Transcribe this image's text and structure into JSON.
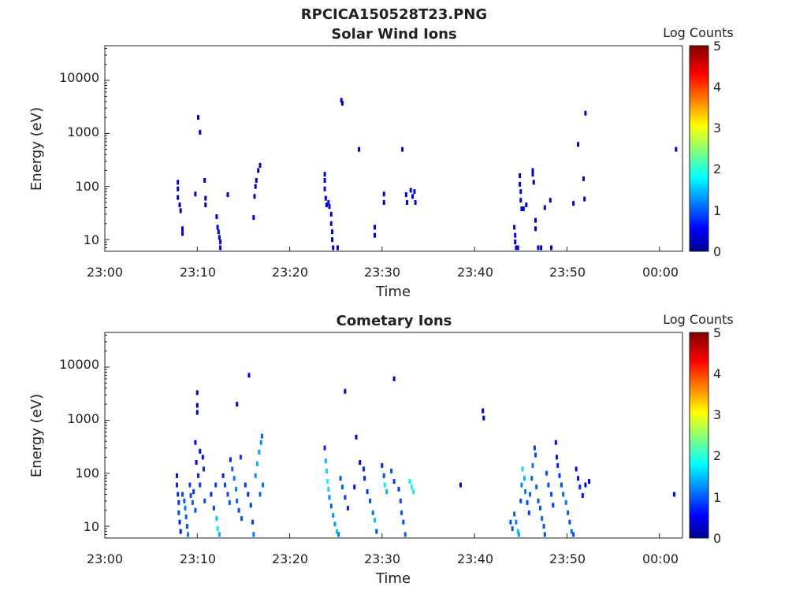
{
  "figure": {
    "title": "RPCICA150528T23.PNG"
  },
  "panels": [
    {
      "title": "Solar Wind Ions",
      "xlabel": "Time",
      "ylabel": "Energy (eV)",
      "xticks": [
        "23:00",
        "23:10",
        "23:20",
        "23:30",
        "23:40",
        "23:50",
        "00:00"
      ],
      "yticks": [
        "10",
        "100",
        "1000",
        "10000"
      ],
      "colorbar": {
        "label": "Log Counts",
        "ticks": [
          "0",
          "1",
          "2",
          "3",
          "4",
          "5"
        ]
      }
    },
    {
      "title": "Cometary Ions",
      "xlabel": "Time",
      "ylabel": "Energy (eV)",
      "xticks": [
        "23:00",
        "23:10",
        "23:20",
        "23:30",
        "23:40",
        "23:50",
        "00:00"
      ],
      "yticks": [
        "10",
        "100",
        "1000",
        "10000"
      ],
      "colorbar": {
        "label": "Log Counts",
        "ticks": [
          "0",
          "1",
          "2",
          "3",
          "4",
          "5"
        ]
      }
    }
  ],
  "chart_data": [
    {
      "type": "heatmap",
      "title": "Solar Wind Ions",
      "xlabel": "Time",
      "ylabel": "Energy (eV)",
      "x_unit": "minutes after 23:00",
      "xlim": [
        0,
        62.5
      ],
      "ylim": [
        6,
        45000
      ],
      "yscale": "log",
      "clim": [
        0,
        5
      ],
      "colormap": "jet",
      "colorbar_label": "Log Counts",
      "points": [
        [
          7.9,
          120,
          0.4
        ],
        [
          7.9,
          90,
          0.4
        ],
        [
          7.9,
          62,
          0.5
        ],
        [
          8.1,
          45,
          0.4
        ],
        [
          8.2,
          35,
          0.4
        ],
        [
          8.4,
          16,
          0.5
        ],
        [
          8.4,
          13,
          0.5
        ],
        [
          9.8,
          72,
          0.4
        ],
        [
          10.1,
          2000,
          0.5
        ],
        [
          10.3,
          1050,
          0.4
        ],
        [
          10.8,
          130,
          0.4
        ],
        [
          10.9,
          60,
          0.5
        ],
        [
          10.9,
          45,
          0.5
        ],
        [
          12.1,
          27,
          0.5
        ],
        [
          12.2,
          17,
          0.5
        ],
        [
          12.3,
          14,
          0.5
        ],
        [
          12.4,
          11,
          0.6
        ],
        [
          12.5,
          9,
          0.5
        ],
        [
          12.5,
          7,
          0.5
        ],
        [
          13.3,
          70,
          0.4
        ],
        [
          16.1,
          26,
          0.5
        ],
        [
          16.2,
          65,
          0.4
        ],
        [
          16.3,
          100,
          0.4
        ],
        [
          16.4,
          130,
          0.3
        ],
        [
          16.6,
          200,
          0.3
        ],
        [
          16.8,
          250,
          0.3
        ],
        [
          23.8,
          170,
          0.5
        ],
        [
          23.8,
          130,
          0.5
        ],
        [
          23.8,
          90,
          0.6
        ],
        [
          23.9,
          60,
          0.6
        ],
        [
          24.0,
          45,
          0.6
        ],
        [
          24.2,
          50,
          0.7
        ],
        [
          24.3,
          42,
          0.6
        ],
        [
          24.5,
          30,
          0.6
        ],
        [
          24.5,
          20,
          0.6
        ],
        [
          24.6,
          14,
          0.5
        ],
        [
          24.6,
          10,
          0.5
        ],
        [
          24.7,
          7,
          0.5
        ],
        [
          25.2,
          7,
          0.4
        ],
        [
          25.6,
          4200,
          0.5
        ],
        [
          25.7,
          3700,
          0.4
        ],
        [
          27.5,
          500,
          0.4
        ],
        [
          29.2,
          17,
          0.5
        ],
        [
          29.2,
          12,
          0.5
        ],
        [
          30.2,
          72,
          0.4
        ],
        [
          30.2,
          50,
          0.4
        ],
        [
          32.2,
          500,
          0.4
        ],
        [
          32.6,
          70,
          0.5
        ],
        [
          32.7,
          50,
          0.5
        ],
        [
          33.1,
          85,
          0.6
        ],
        [
          33.3,
          65,
          0.6
        ],
        [
          33.5,
          80,
          0.6
        ],
        [
          33.6,
          50,
          0.5
        ],
        [
          44.3,
          17,
          0.6
        ],
        [
          44.4,
          12,
          0.7
        ],
        [
          44.4,
          9,
          0.6
        ],
        [
          44.5,
          7,
          0.6
        ],
        [
          44.7,
          7,
          0.5
        ],
        [
          44.9,
          160,
          0.4
        ],
        [
          44.9,
          110,
          0.4
        ],
        [
          45.0,
          80,
          0.5
        ],
        [
          45.0,
          55,
          0.5
        ],
        [
          45.1,
          38,
          0.5
        ],
        [
          45.3,
          38,
          0.5
        ],
        [
          45.6,
          45,
          0.4
        ],
        [
          46.3,
          200,
          0.4
        ],
        [
          46.3,
          170,
          0.4
        ],
        [
          46.4,
          120,
          0.4
        ],
        [
          46.6,
          23,
          0.4
        ],
        [
          46.6,
          16,
          0.4
        ],
        [
          46.9,
          7,
          0.5
        ],
        [
          47.2,
          7,
          0.5
        ],
        [
          47.6,
          40,
          0.4
        ],
        [
          48.2,
          55,
          0.4
        ],
        [
          48.3,
          7,
          0.4
        ],
        [
          50.7,
          48,
          0.4
        ],
        [
          51.2,
          620,
          0.4
        ],
        [
          51.8,
          140,
          0.4
        ],
        [
          51.9,
          58,
          0.4
        ],
        [
          52.0,
          2400,
          0.4
        ],
        [
          61.8,
          500,
          0.5
        ]
      ]
    },
    {
      "type": "heatmap",
      "title": "Cometary Ions",
      "xlabel": "Time",
      "ylabel": "Energy (eV)",
      "x_unit": "minutes after 23:00",
      "xlim": [
        0,
        62.5
      ],
      "ylim": [
        6,
        45000
      ],
      "yscale": "log",
      "clim": [
        0,
        5
      ],
      "colormap": "jet",
      "colorbar_label": "Log Counts",
      "points": [
        [
          7.8,
          90,
          0.7
        ],
        [
          7.8,
          60,
          0.8
        ],
        [
          7.9,
          40,
          0.9
        ],
        [
          8.0,
          28,
          0.9
        ],
        [
          8.0,
          18,
          1.0
        ],
        [
          8.1,
          12,
          0.8
        ],
        [
          8.2,
          8,
          0.7
        ],
        [
          8.4,
          40,
          1.0
        ],
        [
          8.6,
          30,
          1.1
        ],
        [
          8.7,
          22,
          1.2
        ],
        [
          8.8,
          15,
          1.1
        ],
        [
          8.9,
          10,
          1.0
        ],
        [
          9.0,
          7,
          1.2
        ],
        [
          9.2,
          60,
          0.9
        ],
        [
          9.3,
          38,
          1.0
        ],
        [
          9.5,
          28,
          1.1
        ],
        [
          9.6,
          45,
          0.9
        ],
        [
          9.8,
          20,
          1.0
        ],
        [
          9.8,
          380,
          0.5
        ],
        [
          9.9,
          160,
          0.6
        ],
        [
          10.0,
          3300,
          0.5
        ],
        [
          10.0,
          1900,
          0.4
        ],
        [
          10.0,
          1400,
          0.4
        ],
        [
          10.1,
          90,
          0.8
        ],
        [
          10.3,
          260,
          0.6
        ],
        [
          10.3,
          60,
          0.9
        ],
        [
          10.6,
          200,
          0.7
        ],
        [
          10.7,
          120,
          0.8
        ],
        [
          10.8,
          30,
          1.0
        ],
        [
          11.5,
          40,
          0.8
        ],
        [
          11.8,
          22,
          1.0
        ],
        [
          12.0,
          60,
          0.9
        ],
        [
          12.1,
          14,
          1.6
        ],
        [
          12.2,
          9,
          1.8
        ],
        [
          12.4,
          7,
          1.5
        ],
        [
          12.8,
          90,
          0.8
        ],
        [
          13.0,
          60,
          1.0
        ],
        [
          13.3,
          40,
          1.0
        ],
        [
          13.5,
          28,
          1.1
        ],
        [
          13.6,
          180,
          0.8
        ],
        [
          13.8,
          120,
          1.1
        ],
        [
          14.0,
          80,
          1.2
        ],
        [
          14.2,
          50,
          1.3
        ],
        [
          14.3,
          2000,
          0.5
        ],
        [
          14.3,
          30,
          1.1
        ],
        [
          14.5,
          20,
          1.0
        ],
        [
          14.7,
          200,
          0.9
        ],
        [
          14.8,
          14,
          1.0
        ],
        [
          15.2,
          60,
          0.9
        ],
        [
          15.6,
          7000,
          0.5
        ],
        [
          15.5,
          40,
          0.8
        ],
        [
          15.8,
          25,
          0.9
        ],
        [
          16.0,
          12,
          0.9
        ],
        [
          16.1,
          7,
          1.2
        ],
        [
          16.3,
          90,
          1.3
        ],
        [
          16.5,
          150,
          1.5
        ],
        [
          16.7,
          250,
          1.4
        ],
        [
          16.9,
          380,
          1.3
        ],
        [
          17.0,
          500,
          1.1
        ],
        [
          17.1,
          60,
          1.2
        ],
        [
          16.8,
          40,
          1.1
        ],
        [
          23.8,
          300,
          0.8
        ],
        [
          23.9,
          170,
          1.5
        ],
        [
          24.0,
          110,
          1.7
        ],
        [
          24.1,
          70,
          1.9
        ],
        [
          24.2,
          50,
          1.7
        ],
        [
          24.3,
          35,
          1.3
        ],
        [
          24.5,
          24,
          1.1
        ],
        [
          24.7,
          16,
          1.3
        ],
        [
          24.9,
          11,
          1.4
        ],
        [
          25.1,
          8,
          1.6
        ],
        [
          25.3,
          7,
          1.2
        ],
        [
          25.5,
          80,
          1.0
        ],
        [
          25.7,
          55,
          1.1
        ],
        [
          26.0,
          35,
          0.9
        ],
        [
          26.3,
          22,
          0.8
        ],
        [
          27.0,
          55,
          0.7
        ],
        [
          26.0,
          3500,
          0.4
        ],
        [
          27.2,
          480,
          0.5
        ],
        [
          27.6,
          160,
          0.6
        ],
        [
          28.0,
          120,
          0.8
        ],
        [
          28.1,
          80,
          0.8
        ],
        [
          28.4,
          45,
          0.9
        ],
        [
          28.7,
          30,
          1.0
        ],
        [
          29.0,
          18,
          1.2
        ],
        [
          29.2,
          13,
          1.6
        ],
        [
          29.4,
          8,
          1.0
        ],
        [
          30.0,
          140,
          0.8
        ],
        [
          30.2,
          90,
          1.0
        ],
        [
          30.3,
          60,
          1.8
        ],
        [
          30.5,
          45,
          1.5
        ],
        [
          31.0,
          110,
          1.0
        ],
        [
          31.3,
          70,
          0.9
        ],
        [
          31.3,
          6000,
          0.4
        ],
        [
          31.8,
          50,
          0.9
        ],
        [
          32.0,
          30,
          1.0
        ],
        [
          32.1,
          18,
          1.1
        ],
        [
          32.3,
          12,
          1.0
        ],
        [
          32.5,
          7,
          1.1
        ],
        [
          33.0,
          70,
          1.8
        ],
        [
          33.2,
          55,
          1.9
        ],
        [
          33.4,
          45,
          1.8
        ],
        [
          38.5,
          60,
          0.4
        ],
        [
          40.9,
          1500,
          0.5
        ],
        [
          41.0,
          1100,
          0.5
        ],
        [
          43.9,
          12,
          1.0
        ],
        [
          44.1,
          9,
          1.1
        ],
        [
          44.3,
          17,
          1.1
        ],
        [
          44.5,
          12,
          1.3
        ],
        [
          44.7,
          8,
          1.6
        ],
        [
          44.8,
          7,
          1.4
        ],
        [
          45.0,
          30,
          1.0
        ],
        [
          45.1,
          60,
          1.3
        ],
        [
          45.2,
          120,
          1.7
        ],
        [
          45.4,
          80,
          1.5
        ],
        [
          45.5,
          45,
          1.2
        ],
        [
          45.7,
          28,
          1.0
        ],
        [
          45.9,
          18,
          0.9
        ],
        [
          46.0,
          40,
          1.1
        ],
        [
          46.2,
          80,
          1.1
        ],
        [
          46.3,
          140,
          1.2
        ],
        [
          46.5,
          300,
          0.9
        ],
        [
          46.6,
          220,
          1.0
        ],
        [
          46.7,
          55,
          1.1
        ],
        [
          46.9,
          30,
          1.0
        ],
        [
          47.1,
          22,
          1.0
        ],
        [
          47.3,
          14,
          1.1
        ],
        [
          47.5,
          10,
          1.0
        ],
        [
          47.6,
          7,
          1.0
        ],
        [
          47.8,
          100,
          1.0
        ],
        [
          48.0,
          60,
          1.0
        ],
        [
          48.3,
          40,
          1.0
        ],
        [
          48.5,
          25,
          0.9
        ],
        [
          48.8,
          380,
          0.6
        ],
        [
          48.9,
          200,
          0.7
        ],
        [
          49.0,
          140,
          0.8
        ],
        [
          49.2,
          90,
          0.9
        ],
        [
          49.4,
          60,
          1.0
        ],
        [
          49.6,
          40,
          1.1
        ],
        [
          49.9,
          28,
          1.2
        ],
        [
          50.1,
          18,
          1.1
        ],
        [
          50.3,
          12,
          1.0
        ],
        [
          50.5,
          8,
          1.2
        ],
        [
          50.7,
          7,
          1.0
        ],
        [
          51.0,
          120,
          0.6
        ],
        [
          51.2,
          80,
          0.7
        ],
        [
          51.4,
          55,
          0.8
        ],
        [
          51.7,
          38,
          0.7
        ],
        [
          52.0,
          60,
          0.6
        ],
        [
          52.4,
          70,
          0.5
        ],
        [
          61.6,
          40,
          0.6
        ]
      ]
    }
  ]
}
